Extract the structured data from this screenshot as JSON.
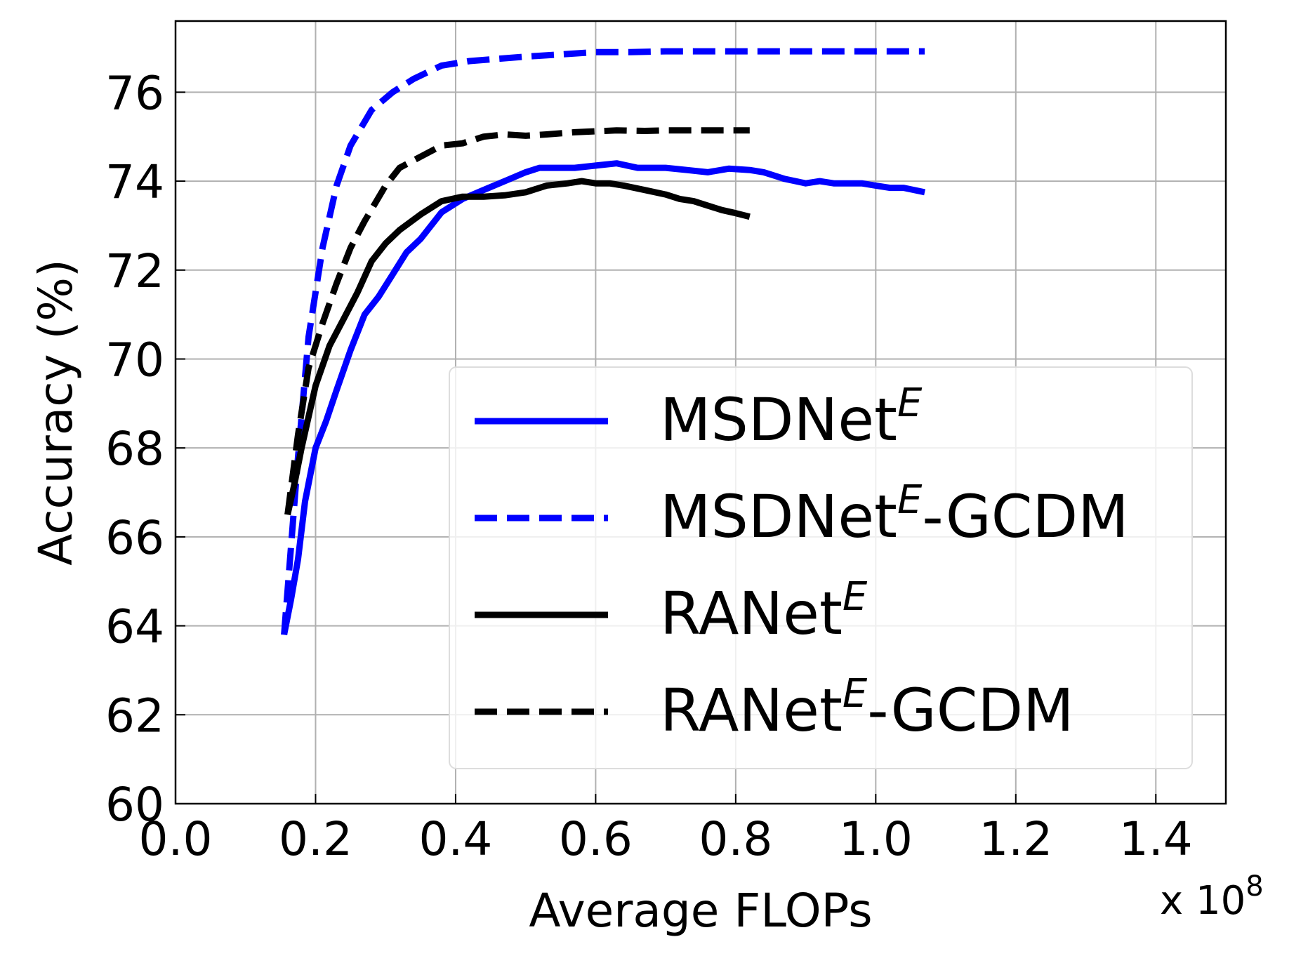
{
  "chart_data": {
    "type": "line",
    "xlabel": "Average FLOPs",
    "ylabel": "Accuracy (%)",
    "x_multiplier_label": "x 10",
    "x_multiplier_exponent": "8",
    "xlim": [
      0.0,
      1.5
    ],
    "ylim": [
      60,
      77.6
    ],
    "xticks": [
      0.0,
      0.2,
      0.4,
      0.6,
      0.8,
      1.0,
      1.2,
      1.4
    ],
    "yticks": [
      60,
      62,
      64,
      66,
      68,
      70,
      72,
      74,
      76
    ],
    "xtick_labels": [
      "0.0",
      "0.2",
      "0.4",
      "0.6",
      "0.8",
      "1.0",
      "1.2",
      "1.4"
    ],
    "ytick_labels": [
      "60",
      "62",
      "64",
      "66",
      "68",
      "70",
      "72",
      "74",
      "76"
    ],
    "grid": true,
    "legend_position": "lower-right",
    "series": [
      {
        "name": "MSDNet",
        "name_superscript": "E",
        "name_suffix": "",
        "color": "#0000ff",
        "dashed": false,
        "x": [
          0.155,
          0.165,
          0.175,
          0.185,
          0.2,
          0.215,
          0.23,
          0.25,
          0.27,
          0.29,
          0.31,
          0.33,
          0.35,
          0.38,
          0.41,
          0.44,
          0.47,
          0.5,
          0.52,
          0.54,
          0.57,
          0.6,
          0.63,
          0.66,
          0.7,
          0.73,
          0.76,
          0.79,
          0.82,
          0.84,
          0.87,
          0.9,
          0.92,
          0.94,
          0.98,
          1.0,
          1.02,
          1.04,
          1.07
        ],
        "y": [
          63.8,
          64.6,
          65.5,
          66.8,
          68.0,
          68.6,
          69.3,
          70.2,
          71.0,
          71.4,
          71.9,
          72.4,
          72.7,
          73.3,
          73.6,
          73.8,
          74.0,
          74.2,
          74.3,
          74.3,
          74.3,
          74.35,
          74.4,
          74.3,
          74.3,
          74.25,
          74.2,
          74.28,
          74.25,
          74.2,
          74.05,
          73.95,
          74.0,
          73.95,
          73.95,
          73.9,
          73.85,
          73.85,
          73.75
        ]
      },
      {
        "name": "MSDNet",
        "name_superscript": "E",
        "name_suffix": "-GCDM",
        "color": "#0000ff",
        "dashed": true,
        "x": [
          0.155,
          0.165,
          0.175,
          0.19,
          0.21,
          0.23,
          0.25,
          0.28,
          0.31,
          0.34,
          0.38,
          0.42,
          0.46,
          0.5,
          0.55,
          0.6,
          0.65,
          0.7,
          0.8,
          0.9,
          1.0,
          1.07
        ],
        "y": [
          63.8,
          65.8,
          67.8,
          70.5,
          72.5,
          73.9,
          74.8,
          75.6,
          76.0,
          76.3,
          76.6,
          76.7,
          76.75,
          76.8,
          76.85,
          76.9,
          76.9,
          76.92,
          76.92,
          76.92,
          76.92,
          76.92
        ]
      },
      {
        "name": "RANet",
        "name_superscript": "E",
        "name_suffix": "",
        "color": "#000000",
        "dashed": false,
        "x": [
          0.16,
          0.17,
          0.18,
          0.19,
          0.2,
          0.22,
          0.24,
          0.26,
          0.28,
          0.3,
          0.32,
          0.35,
          0.38,
          0.41,
          0.44,
          0.47,
          0.5,
          0.53,
          0.56,
          0.58,
          0.6,
          0.62,
          0.64,
          0.67,
          0.7,
          0.72,
          0.74,
          0.76,
          0.78,
          0.8,
          0.82
        ],
        "y": [
          66.5,
          67.2,
          68.0,
          68.7,
          69.4,
          70.3,
          70.9,
          71.5,
          72.2,
          72.6,
          72.9,
          73.25,
          73.55,
          73.65,
          73.65,
          73.68,
          73.75,
          73.9,
          73.95,
          74.0,
          73.95,
          73.95,
          73.9,
          73.8,
          73.7,
          73.6,
          73.55,
          73.45,
          73.35,
          73.28,
          73.2
        ]
      },
      {
        "name": "RANet",
        "name_superscript": "E",
        "name_suffix": "-GCDM",
        "color": "#000000",
        "dashed": true,
        "x": [
          0.16,
          0.175,
          0.19,
          0.21,
          0.23,
          0.25,
          0.27,
          0.3,
          0.32,
          0.35,
          0.38,
          0.41,
          0.44,
          0.47,
          0.5,
          0.53,
          0.57,
          0.6,
          0.63,
          0.67,
          0.7,
          0.74,
          0.78,
          0.82
        ],
        "y": [
          66.5,
          68.3,
          69.8,
          70.8,
          71.7,
          72.5,
          73.1,
          73.9,
          74.3,
          74.55,
          74.8,
          74.85,
          75.0,
          75.05,
          75.02,
          75.05,
          75.1,
          75.12,
          75.14,
          75.13,
          75.14,
          75.14,
          75.14,
          75.14
        ]
      }
    ]
  }
}
